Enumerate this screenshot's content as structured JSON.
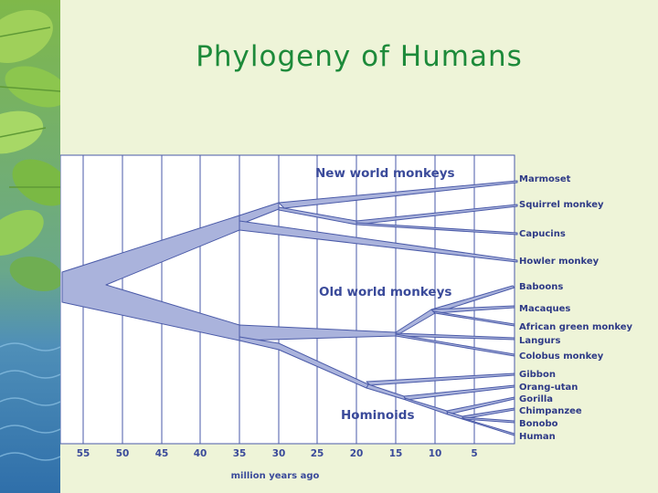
{
  "slide": {
    "title": "Phylogeny of Humans"
  },
  "diagram": {
    "axis": {
      "title": "million years ago",
      "ticks": [
        "55",
        "50",
        "45",
        "40",
        "35",
        "30",
        "25",
        "20",
        "15",
        "10",
        "5"
      ]
    },
    "groups": {
      "new_world": "New world monkeys",
      "old_world": "Old world monkeys",
      "hominoids": "Hominoids"
    },
    "taxa": [
      "Marmoset",
      "Squirrel monkey",
      "Capucins",
      "Howler monkey",
      "Baboons",
      "Macaques",
      "African green monkey",
      "Langurs",
      "Colobus monkey",
      "Gibbon",
      "Orang-utan",
      "Gorilla",
      "Chimpanzee",
      "Bonobo",
      "Human"
    ]
  },
  "colors": {
    "title": "#1d8a3a",
    "branch_fill": "#aab3dc",
    "branch_stroke": "#4a5aa8",
    "label": "#2e3a86",
    "background": "#eef4d8"
  },
  "icons": {
    "side_panel": "leaves-and-water-decoration"
  }
}
